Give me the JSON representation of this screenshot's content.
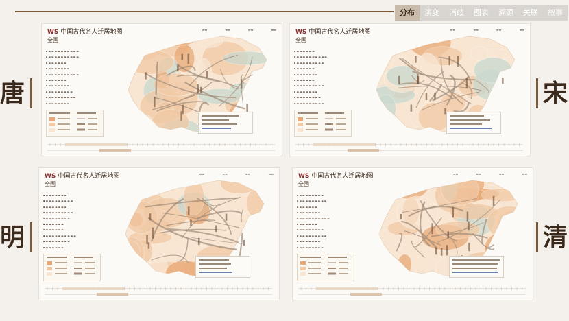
{
  "nav": {
    "tabs": [
      {
        "label": "分布",
        "active": true
      },
      {
        "label": "演变",
        "active": false
      },
      {
        "label": "消歧",
        "active": false
      },
      {
        "label": "图表",
        "active": false
      },
      {
        "label": "溯源",
        "active": false
      },
      {
        "label": "关联",
        "active": false
      },
      {
        "label": "叙事",
        "active": false
      }
    ]
  },
  "dynasties": {
    "tang": "唐",
    "song": "宋",
    "ming": "明",
    "qing": "清"
  },
  "panels": [
    {
      "title": "中国古代名人迁居地图",
      "logo": "WS",
      "scope": "全国"
    },
    {
      "title": "中国古代名人迁居地图",
      "logo": "WS",
      "scope": "全国"
    },
    {
      "title": "中国古代名人迁居地图",
      "logo": "WS",
      "scope": "全国"
    },
    {
      "title": "中国古代名人迁居地图",
      "logo": "WS",
      "scope": "全国"
    }
  ],
  "colors": {
    "accent": "#7a5a3c",
    "tab_active_bg": "#c9bba9",
    "tab_bg": "#d8d4cf",
    "map_dark": "#e8a976",
    "map_mid": "#f1c9a4",
    "map_light": "#f8e6d2",
    "map_green": "#c8d9cf",
    "arrow": "#a08a78"
  }
}
